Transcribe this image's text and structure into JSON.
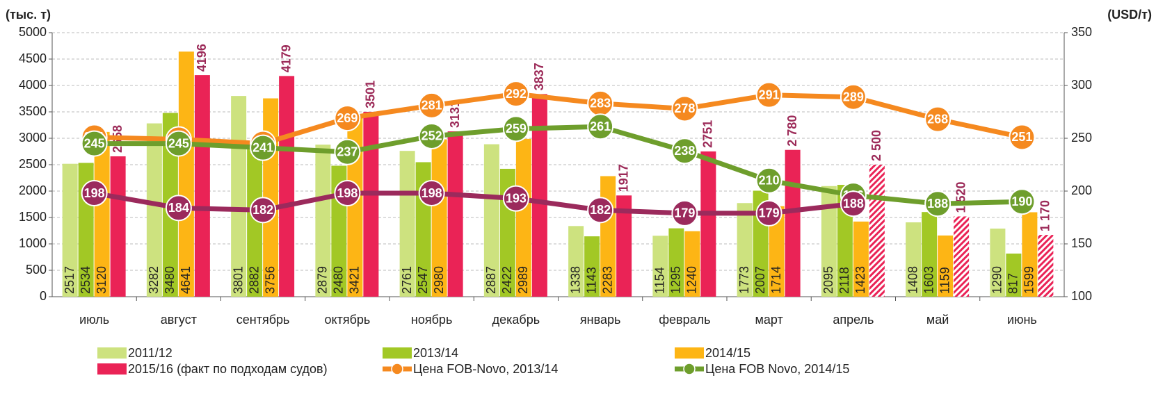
{
  "chart_data": {
    "type": "bar",
    "y_label": "(тыс. т)",
    "y2_label": "(USD/т)",
    "categories": [
      "июль",
      "август",
      "сентябрь",
      "октябрь",
      "ноябрь",
      "декабрь",
      "январь",
      "февраль",
      "март",
      "апрель",
      "май",
      "июнь"
    ],
    "ylim": [
      0,
      5000
    ],
    "yticks": [
      0,
      500,
      1000,
      1500,
      2000,
      2500,
      3000,
      3500,
      4000,
      4500,
      5000
    ],
    "y2lim": [
      100,
      350
    ],
    "y2ticks": [
      100,
      150,
      200,
      250,
      300,
      350
    ],
    "grid": true,
    "series": [
      {
        "name": "2011/12",
        "type": "bar",
        "color": "#cde27f",
        "values": [
          2517,
          3282,
          3801,
          2879,
          2761,
          2887,
          1338,
          1154,
          1773,
          2095,
          1408,
          1290
        ]
      },
      {
        "name": "2013/14",
        "type": "bar",
        "color": "#a2c825",
        "values": [
          2534,
          3480,
          2882,
          2480,
          2547,
          2422,
          1143,
          1295,
          2007,
          2118,
          1603,
          817
        ]
      },
      {
        "name": "2014/15",
        "type": "bar",
        "color": "#fdb515",
        "values": [
          3120,
          4641,
          3756,
          3421,
          2980,
          2989,
          2283,
          1240,
          1714,
          1423,
          1159,
          1599
        ]
      },
      {
        "name": "2015/16 (факт по подходам судов)",
        "type": "bar",
        "color": "#ea2356",
        "label_color": "#9c2a58",
        "values": [
          2658,
          4196,
          4179,
          3501,
          3131,
          3837,
          1917,
          2751,
          2780,
          2500,
          1520,
          1170
        ],
        "value_labels": [
          "2658",
          "4196",
          "4179",
          "3501",
          "3131",
          "3837",
          "1917",
          "2751",
          "2 780",
          "2 500",
          "1 520",
          "1 170"
        ],
        "hatched": [
          false,
          false,
          false,
          false,
          false,
          false,
          false,
          false,
          false,
          true,
          true,
          true
        ]
      },
      {
        "name": "Цена FOB-Novo, 2013/14",
        "type": "line",
        "axis": "y2",
        "color": "#f5891f",
        "values": [
          251,
          249,
          245,
          269,
          281,
          292,
          283,
          278,
          291,
          289,
          268,
          251
        ]
      },
      {
        "name": "Цена FOB Novo, 2014/15",
        "type": "line",
        "axis": "y2",
        "color": "#6e9e2c",
        "values": [
          245,
          245,
          241,
          237,
          252,
          259,
          261,
          238,
          210,
          196,
          188,
          190
        ]
      },
      {
        "type": "line",
        "axis": "y2",
        "color": "#9b2a5c",
        "values": [
          198,
          184,
          182,
          198,
          198,
          193,
          182,
          179,
          179,
          188,
          null,
          null
        ]
      }
    ]
  }
}
